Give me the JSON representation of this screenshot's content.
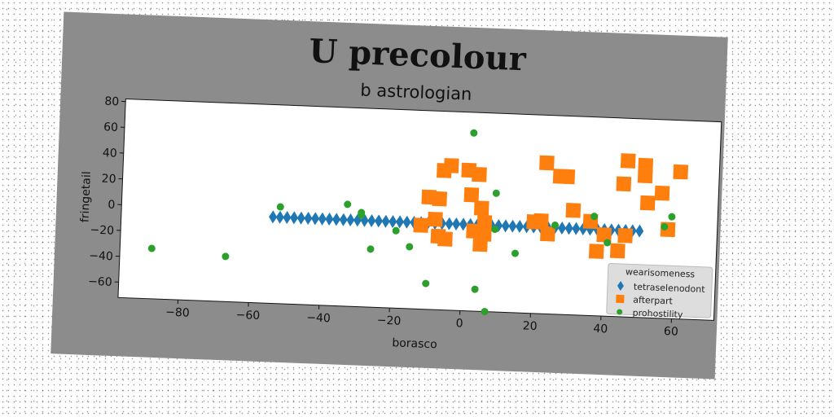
{
  "chart_data": {
    "type": "scatter",
    "title": "U precolour",
    "subtitle": "b astrologian",
    "xlabel": "borasco",
    "ylabel": "fringetail",
    "xlim": [
      -97,
      72
    ],
    "ylim": [
      -72,
      82
    ],
    "xticks": [
      -80,
      -60,
      -40,
      -20,
      0,
      20,
      40,
      60
    ],
    "yticks": [
      -60,
      -40,
      -20,
      0,
      20,
      40,
      60,
      80
    ],
    "xtick_labels": [
      "−80",
      "−60",
      "−40",
      "−20",
      "0",
      "20",
      "40",
      "60"
    ],
    "ytick_labels": [
      "−60",
      "−40",
      "−20",
      "0",
      "20",
      "40",
      "60",
      "80"
    ],
    "grid": false,
    "legend": {
      "title": "wearisomeness",
      "placement": "lower-right"
    },
    "series": [
      {
        "name": "tetraselenodont",
        "marker": "diamond",
        "color": "#1f77b4",
        "points": [
          [
            -54,
            -5
          ],
          [
            -52,
            -5
          ],
          [
            -50,
            -5
          ],
          [
            -48,
            -5
          ],
          [
            -46,
            -5
          ],
          [
            -44,
            -5
          ],
          [
            -42,
            -5
          ],
          [
            -40,
            -5
          ],
          [
            -38,
            -5
          ],
          [
            -36,
            -5
          ],
          [
            -34,
            -5
          ],
          [
            -32,
            -5
          ],
          [
            -30,
            -5
          ],
          [
            -28,
            -5
          ],
          [
            -26,
            -5
          ],
          [
            -24,
            -5
          ],
          [
            -22,
            -5
          ],
          [
            -20,
            -5
          ],
          [
            -18,
            -5
          ],
          [
            -16,
            -5
          ],
          [
            -14,
            -5
          ],
          [
            -12,
            -5
          ],
          [
            -10,
            -5
          ],
          [
            -8,
            -5
          ],
          [
            -6,
            -5
          ],
          [
            -4,
            -5
          ],
          [
            -2,
            -5
          ],
          [
            0,
            -5
          ],
          [
            2,
            -5
          ],
          [
            4,
            -5
          ],
          [
            6,
            -5
          ],
          [
            8,
            -5
          ],
          [
            10,
            -5
          ],
          [
            12,
            -5
          ],
          [
            14,
            -5
          ],
          [
            16,
            -5
          ],
          [
            18,
            -5
          ],
          [
            20,
            -5
          ],
          [
            22,
            -5
          ],
          [
            24,
            -5
          ],
          [
            26,
            -5
          ],
          [
            28,
            -5
          ],
          [
            30,
            -5
          ],
          [
            32,
            -5
          ],
          [
            34,
            -5
          ],
          [
            36,
            -5
          ],
          [
            38,
            -5
          ],
          [
            40,
            -5
          ],
          [
            42,
            -5
          ],
          [
            44,
            -5
          ],
          [
            46,
            -5
          ],
          [
            48,
            -5
          ],
          [
            50,
            -5
          ]
        ]
      },
      {
        "name": "afterpart",
        "marker": "square",
        "color": "#ff7f0e",
        "points": [
          [
            -10,
            15
          ],
          [
            -7,
            14
          ],
          [
            -8,
            -2
          ],
          [
            -12,
            -7
          ],
          [
            -7,
            -15
          ],
          [
            -5,
            -17
          ],
          [
            -6,
            36
          ],
          [
            -4,
            40
          ],
          [
            1,
            37
          ],
          [
            4,
            34
          ],
          [
            2,
            18
          ],
          [
            5,
            8
          ],
          [
            3,
            -10
          ],
          [
            6,
            -12
          ],
          [
            5,
            -20
          ],
          [
            6,
            -3
          ],
          [
            20,
            -1
          ],
          [
            22,
            0
          ],
          [
            23,
            45
          ],
          [
            27,
            35
          ],
          [
            29,
            35
          ],
          [
            24,
            -10
          ],
          [
            31,
            9
          ],
          [
            36,
            1
          ],
          [
            38,
            -22
          ],
          [
            40,
            -9
          ],
          [
            46,
            -9
          ],
          [
            44,
            -21
          ],
          [
            45,
            31
          ],
          [
            46,
            49
          ],
          [
            51,
            38
          ],
          [
            51,
            46
          ],
          [
            52,
            17
          ],
          [
            56,
            25
          ],
          [
            58,
            -3
          ],
          [
            61,
            42
          ]
        ]
      },
      {
        "name": "prohostility",
        "marker": "circle",
        "color": "#2ca02c",
        "points": [
          [
            -88,
            -33
          ],
          [
            -67,
            -37
          ],
          [
            -52,
            3
          ],
          [
            -33,
            7
          ],
          [
            -29,
            1
          ],
          [
            -29,
            -1
          ],
          [
            -26,
            -27
          ],
          [
            -19,
            -12
          ],
          [
            -15,
            -24
          ],
          [
            -10,
            -52
          ],
          [
            2,
            66
          ],
          [
            4,
            -55
          ],
          [
            7,
            -72
          ],
          [
            9,
            20
          ],
          [
            9,
            -8
          ],
          [
            15,
            -26
          ],
          [
            26,
            -3
          ],
          [
            37,
            5
          ],
          [
            41,
            -15
          ],
          [
            57,
            -1
          ],
          [
            59,
            7
          ]
        ]
      }
    ]
  }
}
